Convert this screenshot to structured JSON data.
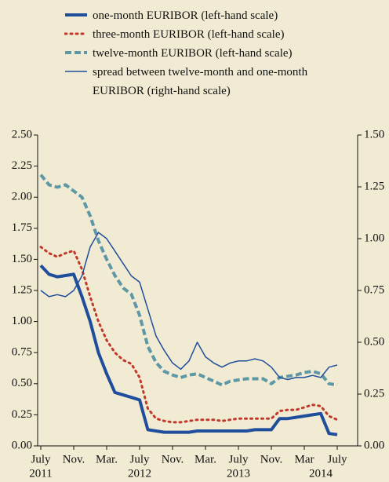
{
  "chart_data": {
    "type": "line",
    "x": [
      "2011-07",
      "2011-08",
      "2011-09",
      "2011-10",
      "2011-11",
      "2011-12",
      "2012-01",
      "2012-02",
      "2012-03",
      "2012-04",
      "2012-05",
      "2012-06",
      "2012-07",
      "2012-08",
      "2012-09",
      "2012-10",
      "2012-11",
      "2012-12",
      "2013-01",
      "2013-02",
      "2013-03",
      "2013-04",
      "2013-05",
      "2013-06",
      "2013-07",
      "2013-08",
      "2013-09",
      "2013-10",
      "2013-11",
      "2013-12",
      "2014-01",
      "2014-02",
      "2014-03",
      "2014-04",
      "2014-05",
      "2014-06",
      "2014-07"
    ],
    "series": [
      {
        "name": "one-month EURIBOR (left-hand scale)",
        "color": "#1f4e9c",
        "line_style": "solid",
        "line_width": 4,
        "values": [
          1.45,
          1.38,
          1.36,
          1.37,
          1.38,
          1.2,
          1.0,
          0.75,
          0.58,
          0.43,
          0.41,
          0.39,
          0.37,
          0.13,
          0.12,
          0.11,
          0.11,
          0.11,
          0.11,
          0.12,
          0.12,
          0.12,
          0.12,
          0.12,
          0.12,
          0.12,
          0.13,
          0.13,
          0.13,
          0.22,
          0.22,
          0.23,
          0.24,
          0.25,
          0.26,
          0.1,
          0.09
        ]
      },
      {
        "name": "three-month EURIBOR (left-hand scale)",
        "color": "#c0392b",
        "line_style": "dotted",
        "line_width": 3,
        "values": [
          1.6,
          1.55,
          1.52,
          1.55,
          1.57,
          1.42,
          1.2,
          1.0,
          0.85,
          0.75,
          0.69,
          0.66,
          0.55,
          0.3,
          0.22,
          0.2,
          0.19,
          0.19,
          0.2,
          0.21,
          0.21,
          0.21,
          0.2,
          0.21,
          0.22,
          0.22,
          0.22,
          0.22,
          0.22,
          0.28,
          0.29,
          0.29,
          0.31,
          0.33,
          0.32,
          0.24,
          0.21
        ]
      },
      {
        "name": "twelve-month EURIBOR (left-hand scale)",
        "color": "#5e98a6",
        "line_style": "dashed",
        "line_width": 4,
        "values": [
          2.18,
          2.1,
          2.08,
          2.1,
          2.05,
          2.0,
          1.85,
          1.65,
          1.5,
          1.37,
          1.27,
          1.22,
          1.05,
          0.8,
          0.67,
          0.6,
          0.57,
          0.55,
          0.57,
          0.58,
          0.55,
          0.52,
          0.49,
          0.52,
          0.53,
          0.54,
          0.54,
          0.54,
          0.5,
          0.55,
          0.56,
          0.57,
          0.59,
          0.6,
          0.58,
          0.5,
          0.49
        ]
      },
      {
        "name": "spread between twelve-month and one-month EURIBOR (right-hand scale)",
        "color": "#1f4e9c",
        "line_style": "solid",
        "line_width": 1.5,
        "axis": "y2",
        "values": [
          0.75,
          0.72,
          0.73,
          0.72,
          0.75,
          0.82,
          0.96,
          1.03,
          1.0,
          0.94,
          0.88,
          0.82,
          0.79,
          0.66,
          0.53,
          0.46,
          0.4,
          0.37,
          0.41,
          0.5,
          0.43,
          0.4,
          0.38,
          0.4,
          0.41,
          0.41,
          0.42,
          0.41,
          0.38,
          0.33,
          0.32,
          0.33,
          0.33,
          0.34,
          0.33,
          0.38,
          0.39
        ]
      }
    ],
    "ylim": [
      0,
      2.5
    ],
    "yticks": [
      {
        "value": 0,
        "label": "0.00"
      },
      {
        "value": 0.25,
        "label": "0.25"
      },
      {
        "value": 0.5,
        "label": "0.50"
      },
      {
        "value": 0.75,
        "label": "0.75"
      },
      {
        "value": 1,
        "label": "1.00"
      },
      {
        "value": 1.25,
        "label": "1.25"
      },
      {
        "value": 1.5,
        "label": "1.50"
      },
      {
        "value": 1.75,
        "label": "1.75"
      },
      {
        "value": 2,
        "label": "2.00"
      },
      {
        "value": 2.25,
        "label": "2.25"
      },
      {
        "value": 2.5,
        "label": "2.50"
      }
    ],
    "y2lim": [
      0,
      1.5
    ],
    "y2ticks": [
      {
        "value": 0,
        "label": "0.00"
      },
      {
        "value": 0.25,
        "label": "0.25"
      },
      {
        "value": 0.5,
        "label": "0.50"
      },
      {
        "value": 0.75,
        "label": "0.75"
      },
      {
        "value": 1,
        "label": "1.00"
      },
      {
        "value": 1.25,
        "label": "1.25"
      },
      {
        "value": 1.5,
        "label": "1.50"
      }
    ],
    "xticks": [
      {
        "value": "2011-07",
        "label": "July"
      },
      {
        "value": "2011-11",
        "label": "Nov."
      },
      {
        "value": "2012-03",
        "label": "Mar."
      },
      {
        "value": "2012-07",
        "label": "July"
      },
      {
        "value": "2012-11",
        "label": "Nov."
      },
      {
        "value": "2013-03",
        "label": "Mar."
      },
      {
        "value": "2013-07",
        "label": "July"
      },
      {
        "value": "2013-11",
        "label": "Nov."
      },
      {
        "value": "2014-03",
        "label": "Mar"
      },
      {
        "value": "2014-07",
        "label": "July"
      }
    ],
    "xtick_years": [
      {
        "value": "2011-07",
        "label": "2011"
      },
      {
        "value": "2012-07",
        "label": "2012"
      },
      {
        "value": "2013-07",
        "label": "2013"
      },
      {
        "value": "2014-05",
        "label": "2014"
      }
    ],
    "grid": false,
    "legend": "top"
  }
}
